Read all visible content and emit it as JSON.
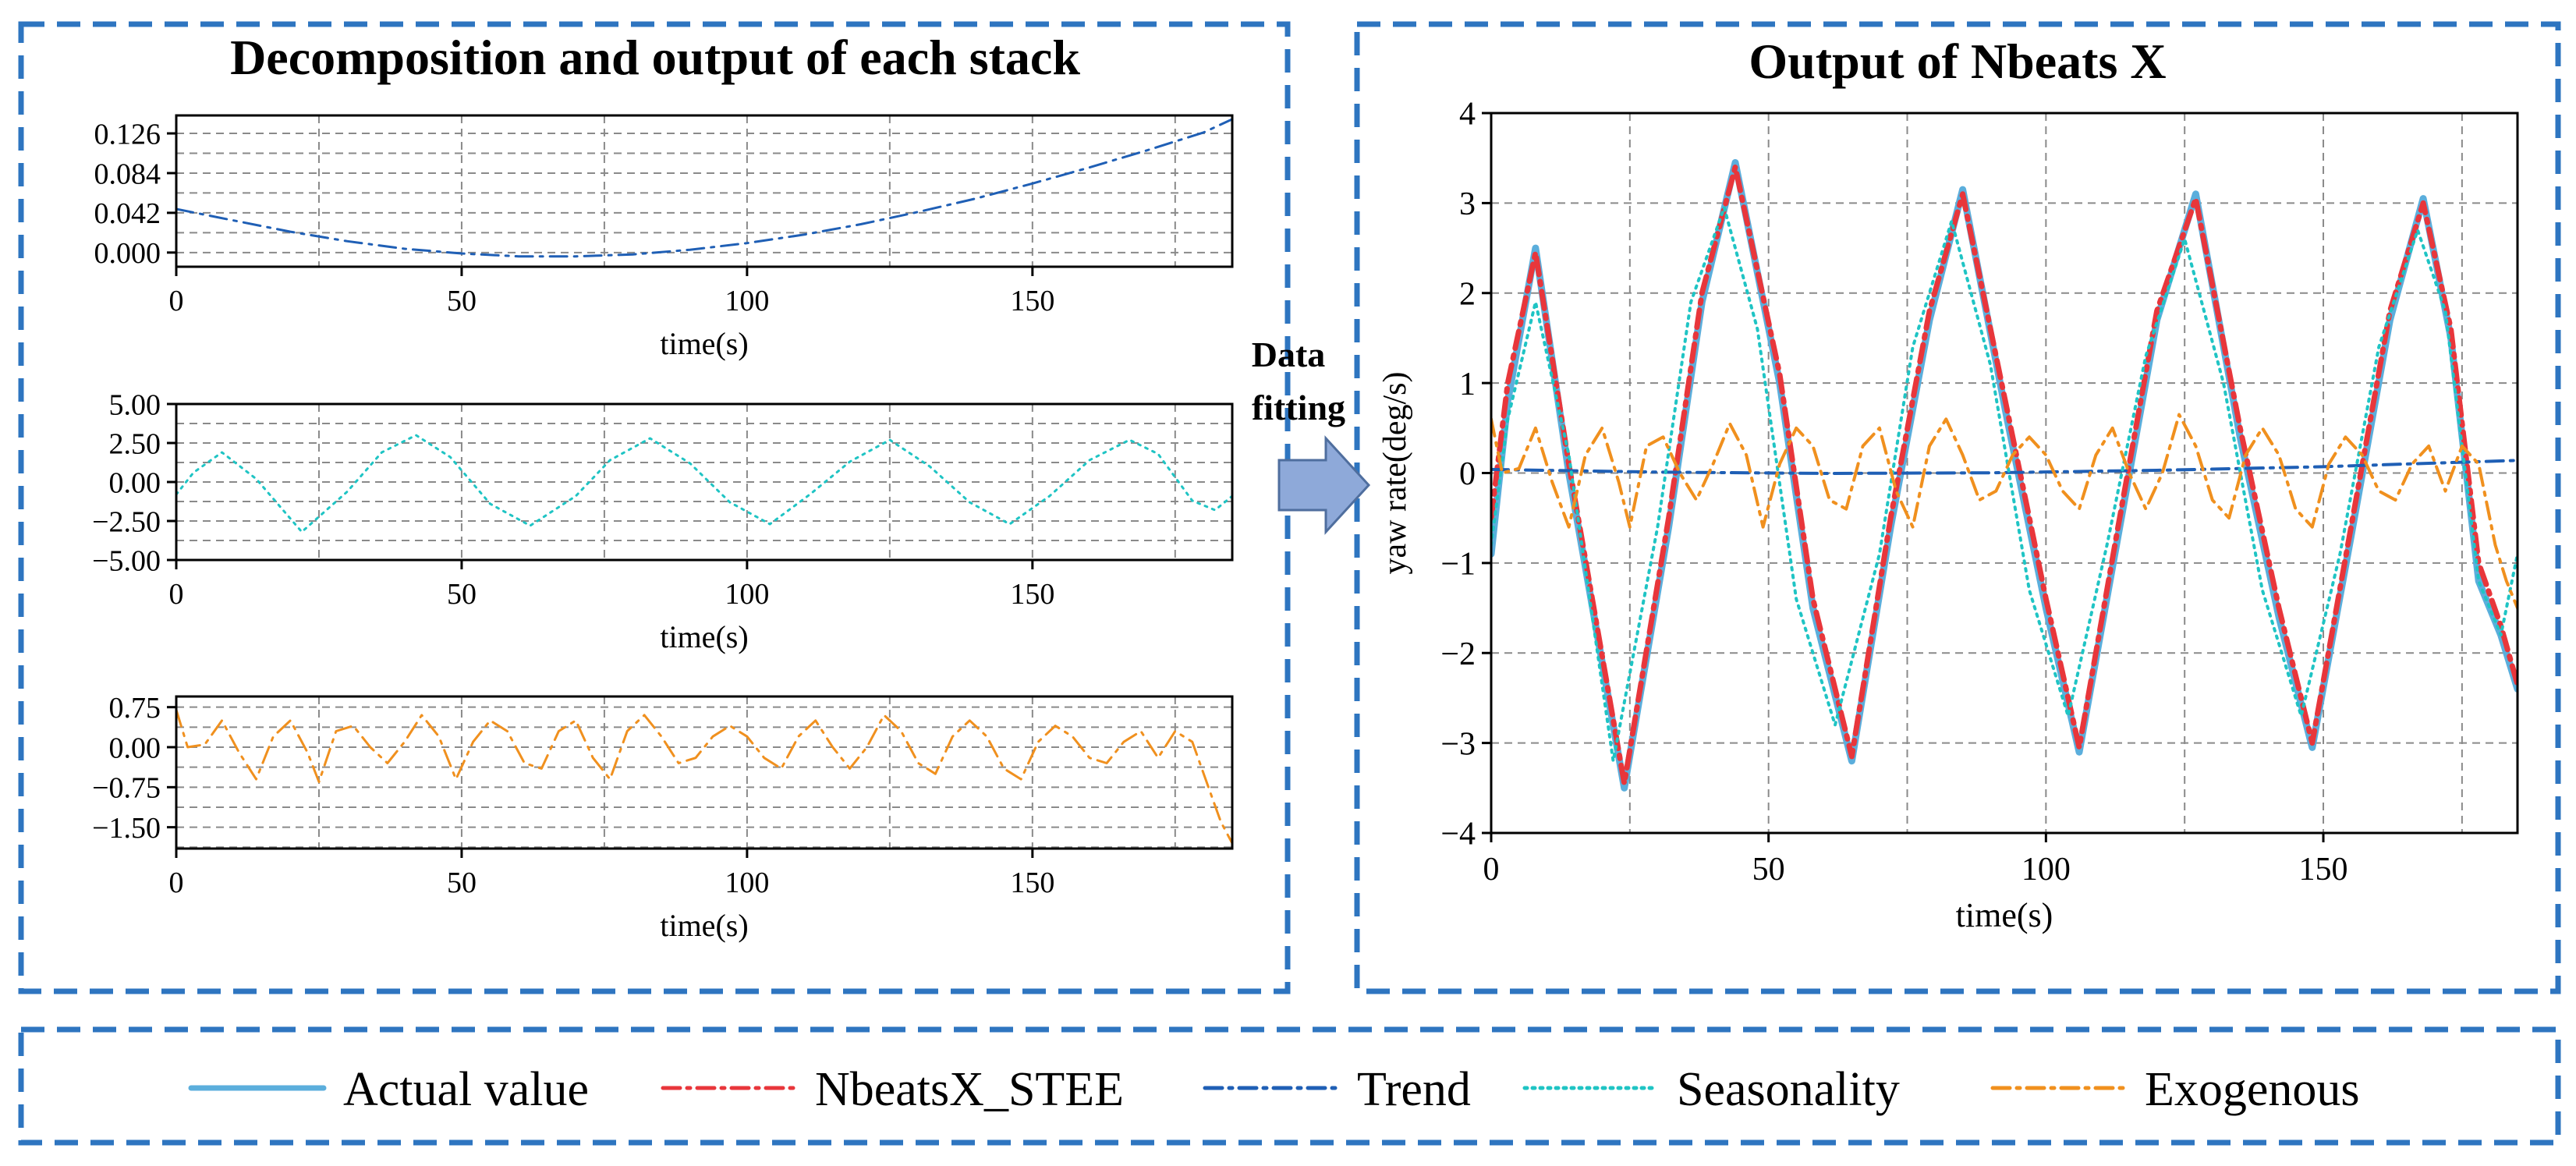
{
  "left_panel": {
    "title": "Decomposition and output of each stack"
  },
  "right_panel": {
    "title": "Output of Nbeats X"
  },
  "arrow": {
    "label_line1": "Data",
    "label_line2": "fitting",
    "color": "#8EA9D9"
  },
  "chart_data": [
    {
      "id": "trend",
      "type": "line",
      "title": "",
      "xlabel": "time(s)",
      "ylabel": "",
      "xlim": [
        0,
        185
      ],
      "ylim": [
        -0.015,
        0.145
      ],
      "xticks": [
        0,
        50,
        100,
        150
      ],
      "yticks": [
        0.0,
        0.042,
        0.084,
        0.126
      ],
      "ytick_labels": [
        "0.000",
        "0.042",
        "0.084",
        "0.126"
      ],
      "grid": true,
      "series": [
        {
          "name": "Trend",
          "color": "#1F5FB5",
          "style": "dashdot",
          "x": [
            0,
            10,
            20,
            30,
            40,
            50,
            60,
            70,
            80,
            90,
            100,
            110,
            120,
            130,
            140,
            150,
            160,
            170,
            180,
            185
          ],
          "y": [
            0.046,
            0.034,
            0.022,
            0.012,
            0.004,
            -0.001,
            -0.004,
            -0.004,
            -0.002,
            0.003,
            0.01,
            0.019,
            0.03,
            0.043,
            0.057,
            0.073,
            0.09,
            0.108,
            0.127,
            0.141
          ]
        }
      ]
    },
    {
      "id": "seasonality",
      "type": "line",
      "title": "",
      "xlabel": "time(s)",
      "ylabel": "",
      "xlim": [
        0,
        185
      ],
      "ylim": [
        -5.0,
        5.0
      ],
      "xticks": [
        0,
        50,
        100,
        150
      ],
      "yticks": [
        -5.0,
        -2.5,
        0.0,
        2.5,
        5.0
      ],
      "ytick_labels": [
        "−5.00",
        "−2.50",
        "0.00",
        "2.50",
        "5.00"
      ],
      "grid": true,
      "series": [
        {
          "name": "Seasonality",
          "color": "#1FC4C4",
          "style": "dotted",
          "x": [
            0,
            3,
            8,
            14,
            22,
            30,
            36,
            42,
            48,
            55,
            62,
            70,
            76,
            83,
            90,
            97,
            104,
            111,
            118,
            125,
            132,
            139,
            146,
            153,
            160,
            167,
            172,
            178,
            182,
            185
          ],
          "y": [
            -0.8,
            0.6,
            1.9,
            0.2,
            -3.2,
            -0.6,
            1.9,
            3.0,
            1.6,
            -1.4,
            -2.8,
            -0.9,
            1.4,
            2.8,
            1.2,
            -1.3,
            -2.7,
            -0.8,
            1.3,
            2.7,
            1.0,
            -1.3,
            -2.7,
            -0.9,
            1.4,
            2.7,
            1.8,
            -1.2,
            -1.8,
            -0.9
          ]
        }
      ]
    },
    {
      "id": "exogenous",
      "type": "line",
      "title": "",
      "xlabel": "time(s)",
      "ylabel": "",
      "xlim": [
        0,
        185
      ],
      "ylim": [
        -1.9,
        0.95
      ],
      "xticks": [
        0,
        50,
        100,
        150
      ],
      "yticks": [
        -1.5,
        -0.75,
        0.0,
        0.75
      ],
      "ytick_labels": [
        "−1.50",
        "−0.75",
        "0.00",
        "0.75"
      ],
      "grid": true,
      "series": [
        {
          "name": "Exogenous",
          "color": "#F0901E",
          "style": "dashdot",
          "x": [
            0,
            2,
            5,
            8,
            11,
            14,
            17,
            20,
            23,
            25,
            28,
            31,
            34,
            37,
            40,
            43,
            46,
            49,
            52,
            55,
            58,
            61,
            64,
            67,
            70,
            73,
            76,
            79,
            82,
            85,
            88,
            91,
            94,
            97,
            100,
            103,
            106,
            109,
            112,
            115,
            118,
            121,
            124,
            127,
            130,
            133,
            136,
            139,
            142,
            145,
            148,
            151,
            154,
            157,
            160,
            163,
            166,
            169,
            172,
            175,
            178,
            181,
            183,
            185
          ],
          "y": [
            0.7,
            0.0,
            0.05,
            0.5,
            -0.1,
            -0.6,
            0.2,
            0.5,
            -0.1,
            -0.65,
            0.3,
            0.4,
            0.0,
            -0.3,
            0.1,
            0.6,
            0.2,
            -0.6,
            0.1,
            0.5,
            0.3,
            -0.3,
            -0.4,
            0.3,
            0.5,
            -0.2,
            -0.6,
            0.3,
            0.6,
            0.2,
            -0.3,
            -0.2,
            0.2,
            0.4,
            0.2,
            -0.2,
            -0.4,
            0.2,
            0.5,
            0.0,
            -0.4,
            0.0,
            0.6,
            0.3,
            -0.3,
            -0.5,
            0.2,
            0.5,
            0.2,
            -0.4,
            -0.6,
            0.1,
            0.4,
            0.2,
            -0.2,
            -0.3,
            0.1,
            0.3,
            -0.2,
            0.3,
            0.1,
            -0.8,
            -1.4,
            -1.8
          ]
        }
      ]
    },
    {
      "id": "output",
      "type": "line",
      "title": "Output of Nbeats X",
      "xlabel": "time(s)",
      "ylabel": "yaw rate(deg/s)",
      "xlim": [
        0,
        185
      ],
      "ylim": [
        -4,
        4
      ],
      "xticks": [
        0,
        50,
        100,
        150
      ],
      "yticks": [
        -4,
        -3,
        -2,
        -1,
        0,
        1,
        2,
        3,
        4
      ],
      "ytick_labels": [
        "−4",
        "−3",
        "−2",
        "−1",
        "0",
        "1",
        "2",
        "3",
        "4"
      ],
      "grid": true,
      "legend": "bottom",
      "series": [
        {
          "name": "Actual value",
          "color": "#5BAEDC",
          "style": "solid",
          "x": [
            0,
            3,
            8,
            14,
            24,
            32,
            38,
            44,
            52,
            58,
            65,
            72,
            79,
            85,
            93,
            100,
            106,
            113,
            120,
            127,
            135,
            142,
            148,
            155,
            162,
            168,
            173,
            178,
            182,
            185
          ],
          "y": [
            -0.9,
            0.8,
            2.5,
            0.0,
            -3.5,
            -0.6,
            1.9,
            3.45,
            1.0,
            -1.5,
            -3.2,
            -0.6,
            1.7,
            3.15,
            0.6,
            -1.5,
            -3.1,
            -0.7,
            1.7,
            3.1,
            0.4,
            -1.6,
            -3.05,
            -0.7,
            1.7,
            3.05,
            1.5,
            -1.2,
            -1.8,
            -2.4
          ]
        },
        {
          "name": "NbeatsX_STEE",
          "color": "#E8363B",
          "style": "dashdot",
          "x": [
            0,
            3,
            8,
            14,
            24,
            32,
            38,
            44,
            52,
            58,
            65,
            72,
            79,
            85,
            93,
            100,
            106,
            113,
            120,
            127,
            135,
            142,
            148,
            155,
            162,
            168,
            173,
            178,
            182,
            185
          ],
          "y": [
            -0.5,
            1.0,
            2.45,
            0.1,
            -3.45,
            -0.5,
            2.0,
            3.4,
            1.1,
            -1.4,
            -3.15,
            -0.5,
            1.8,
            3.1,
            0.7,
            -1.4,
            -3.05,
            -0.6,
            1.8,
            3.05,
            0.5,
            -1.5,
            -3.0,
            -0.6,
            1.8,
            3.0,
            1.6,
            -1.0,
            -1.7,
            -2.35
          ]
        },
        {
          "name": "Trend",
          "color": "#1F5FB5",
          "style": "dashdot",
          "x": [
            0,
            30,
            60,
            90,
            120,
            150,
            185
          ],
          "y": [
            0.04,
            0.01,
            -0.004,
            0.003,
            0.03,
            0.07,
            0.14
          ]
        },
        {
          "name": "Seasonality",
          "color": "#1FC4C4",
          "style": "dotted",
          "x": [
            0,
            3,
            8,
            14,
            22,
            30,
            36,
            42,
            48,
            55,
            62,
            70,
            76,
            83,
            90,
            97,
            104,
            111,
            118,
            125,
            132,
            139,
            146,
            153,
            160,
            167,
            172,
            178,
            182,
            185
          ],
          "y": [
            -0.8,
            0.6,
            1.9,
            0.2,
            -3.2,
            -0.6,
            1.9,
            2.95,
            1.6,
            -1.4,
            -2.8,
            -0.9,
            1.4,
            2.8,
            1.2,
            -1.3,
            -2.7,
            -0.8,
            1.3,
            2.6,
            1.0,
            -1.3,
            -2.7,
            -0.9,
            1.4,
            2.7,
            1.8,
            -1.2,
            -1.8,
            -0.9
          ]
        },
        {
          "name": "Exogenous",
          "color": "#F0901E",
          "style": "dashdot",
          "x": [
            0,
            2,
            5,
            8,
            11,
            14,
            17,
            20,
            23,
            25,
            28,
            31,
            34,
            37,
            40,
            43,
            46,
            49,
            52,
            55,
            58,
            61,
            64,
            67,
            70,
            73,
            76,
            79,
            82,
            85,
            88,
            91,
            94,
            97,
            100,
            103,
            106,
            109,
            112,
            115,
            118,
            121,
            124,
            127,
            130,
            133,
            136,
            139,
            142,
            145,
            148,
            151,
            154,
            157,
            160,
            163,
            166,
            169,
            172,
            175,
            178,
            181,
            183,
            185
          ],
          "y": [
            0.6,
            0.0,
            0.05,
            0.5,
            -0.1,
            -0.6,
            0.2,
            0.5,
            -0.1,
            -0.6,
            0.3,
            0.4,
            0.0,
            -0.3,
            0.1,
            0.55,
            0.2,
            -0.6,
            0.1,
            0.5,
            0.3,
            -0.3,
            -0.4,
            0.3,
            0.5,
            -0.2,
            -0.6,
            0.3,
            0.6,
            0.2,
            -0.3,
            -0.2,
            0.2,
            0.4,
            0.2,
            -0.2,
            -0.4,
            0.2,
            0.5,
            0.0,
            -0.4,
            0.0,
            0.65,
            0.3,
            -0.3,
            -0.5,
            0.2,
            0.5,
            0.2,
            -0.4,
            -0.6,
            0.1,
            0.4,
            0.2,
            -0.2,
            -0.3,
            0.1,
            0.3,
            -0.2,
            0.3,
            0.1,
            -0.8,
            -1.2,
            -1.5
          ]
        }
      ]
    }
  ],
  "legend": {
    "items": [
      {
        "label": "Actual value",
        "color": "#5BAEDC",
        "style": "solid"
      },
      {
        "label": "NbeatsX_STEE",
        "color": "#E8363B",
        "style": "dashdot"
      },
      {
        "label": "Trend",
        "color": "#1F5FB5",
        "style": "dashdot"
      },
      {
        "label": "Seasonality",
        "color": "#1FC4C4",
        "style": "dotted"
      },
      {
        "label": "Exogenous",
        "color": "#F0901E",
        "style": "dashdot"
      }
    ]
  },
  "frame_color": "#2E75C0"
}
